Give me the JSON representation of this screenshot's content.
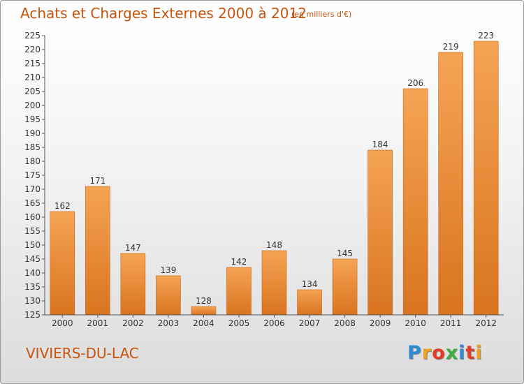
{
  "title": "Achats et Charges Externes 2000 à 2012",
  "subtitle": "(en milliers d'€)",
  "town": "VIVIERS-DU-LAC",
  "logo": {
    "text": "Proxiti",
    "letter_colors": [
      "#2f8bd6",
      "#f0a11a",
      "#e53c2a",
      "#3fae3f",
      "#2f8bd6",
      "#e53c2a",
      "#f0a11a"
    ]
  },
  "colors": {
    "bar_top": "#f5a454",
    "bar_bottom": "#d9741f",
    "bar_edge": "#c9651a",
    "title": "#c8530c"
  },
  "chart_data": {
    "type": "bar",
    "categories": [
      "2000",
      "2001",
      "2002",
      "2003",
      "2004",
      "2005",
      "2006",
      "2007",
      "2008",
      "2009",
      "2010",
      "2011",
      "2012"
    ],
    "values": [
      162,
      171,
      147,
      139,
      128,
      142,
      148,
      134,
      145,
      184,
      206,
      219,
      223
    ],
    "title": "Achats et Charges Externes 2000 à 2012",
    "subtitle": "(en milliers d'€)",
    "xlabel": "",
    "ylabel": "",
    "ylim": [
      125,
      225
    ],
    "yticks": [
      125,
      130,
      135,
      140,
      145,
      150,
      155,
      160,
      165,
      170,
      175,
      180,
      185,
      190,
      195,
      200,
      205,
      210,
      215,
      220,
      225
    ],
    "grid": false,
    "data_labels": true
  }
}
